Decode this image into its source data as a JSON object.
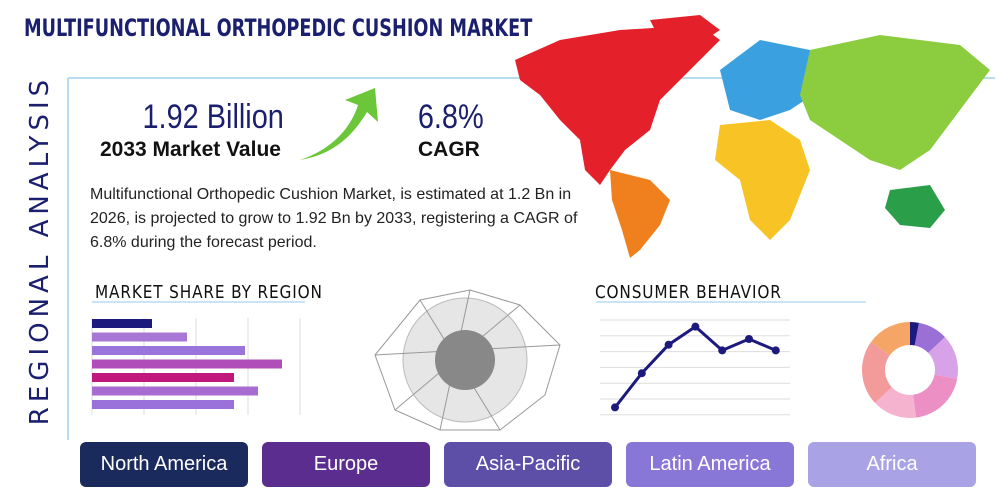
{
  "header": {
    "title": "MULTIFUNCTIONAL ORTHOPEDIC CUSHION MARKET",
    "side_label": "REGIONAL ANALYSIS"
  },
  "stats": {
    "market_value": "1.92 Billion",
    "market_value_label": "2033 Market Value",
    "cagr": "6.8%",
    "cagr_label": "CAGR"
  },
  "description": "Multifunctional Orthopedic Cushion Market, is estimated at 1.2 Bn in 2026, is projected to grow to 1.92 Bn by 2033, registering a CAGR of 6.8% during the forecast period.",
  "market_share": {
    "title": "MARKET SHARE BY REGION",
    "type": "bar",
    "values": [
      60,
      95,
      153,
      190,
      142,
      166,
      142
    ],
    "colors": [
      "#1c1a7c",
      "#a877d6",
      "#9a74da",
      "#b04db8",
      "#c0187c",
      "#a86bd2",
      "#9a70da"
    ],
    "xlim": [
      0,
      210
    ]
  },
  "consumer_behavior": {
    "title": "CONSUMER BEHAVIOR",
    "type": "line",
    "values": [
      8,
      44,
      74,
      93,
      68,
      80,
      68
    ],
    "color": "#1c1a7c",
    "ylim": [
      0,
      100
    ]
  },
  "donut": {
    "type": "pie",
    "values": [
      3,
      10,
      15,
      20,
      15,
      22,
      15
    ],
    "colors": [
      "#1c1a7c",
      "#9a6fd6",
      "#d8a2e8",
      "#ec8fc4",
      "#f6b3cf",
      "#f39a9a",
      "#f5a566"
    ]
  },
  "regions": [
    "North America",
    "Europe",
    "Asia-Pacific",
    "Latin America",
    "Africa"
  ],
  "region_colors": [
    "#1b2a5c",
    "#5a2d8e",
    "#5d4fa8",
    "#8877d6",
    "#a9a3e6"
  ]
}
